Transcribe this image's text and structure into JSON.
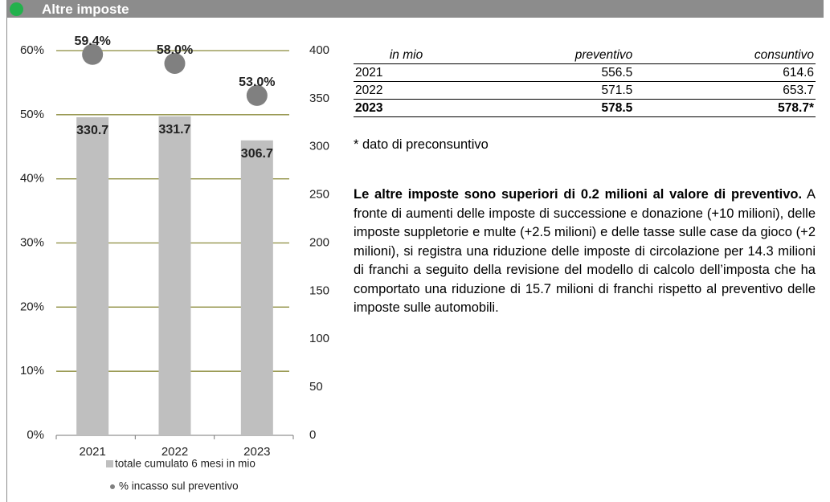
{
  "header": {
    "title": "Altre imposte"
  },
  "chart_data": {
    "type": "bar",
    "categories": [
      "2021",
      "2022",
      "2023"
    ],
    "series": [
      {
        "name": "totale cumulato 6 mesi in mio",
        "color": "#bfbfbf",
        "axis": "y2",
        "values": [
          330.7,
          331.7,
          306.7
        ]
      },
      {
        "name": "% incasso sul preventivo",
        "type": "scatter",
        "color": "#808080",
        "values": [
          59.4,
          58.0,
          53.0
        ],
        "value_labels": [
          "59.4%",
          "58.0%",
          "53.0%"
        ]
      }
    ],
    "ylim": [
      0,
      60
    ],
    "yticks": [
      {
        "value": 0,
        "label": "0%"
      },
      {
        "value": 10,
        "label": "10%"
      },
      {
        "value": 20,
        "label": "20%"
      },
      {
        "value": 30,
        "label": "30%"
      },
      {
        "value": 40,
        "label": "40%"
      },
      {
        "value": 50,
        "label": "50%"
      },
      {
        "value": 60,
        "label": "60%"
      }
    ],
    "y2lim": [
      0,
      400
    ],
    "y2ticks": [
      0,
      50,
      100,
      150,
      200,
      250,
      300,
      350,
      400
    ],
    "grid": true,
    "grid_color": "#8b8b3c"
  },
  "table": {
    "columns": [
      "in mio",
      "preventivo",
      "consuntivo"
    ],
    "rows": [
      [
        "2021",
        "556.5",
        "614.6"
      ],
      [
        "2022",
        "571.5",
        "653.7"
      ],
      [
        "2023",
        "578.5",
        "578.7*"
      ]
    ]
  },
  "note": "* dato di preconsuntivo",
  "paragraph": {
    "bold": "Le altre imposte sono superiori di 0.2 milioni al valore di preventivo.",
    "text": " A fronte di aumenti delle imposte di successione e donazione (+10 milioni), delle imposte suppletorie e multe (+2.5 milioni) e delle tasse sulle case da gioco (+2 milioni), si registra una riduzione delle imposte di circolazione per 14.3 milioni di franchi a seguito della revisione del modello di calcolo dell’imposta che ha comportato una riduzione di 15.7 milioni di franchi rispetto al preventivo delle imposte sulle automobili."
  }
}
